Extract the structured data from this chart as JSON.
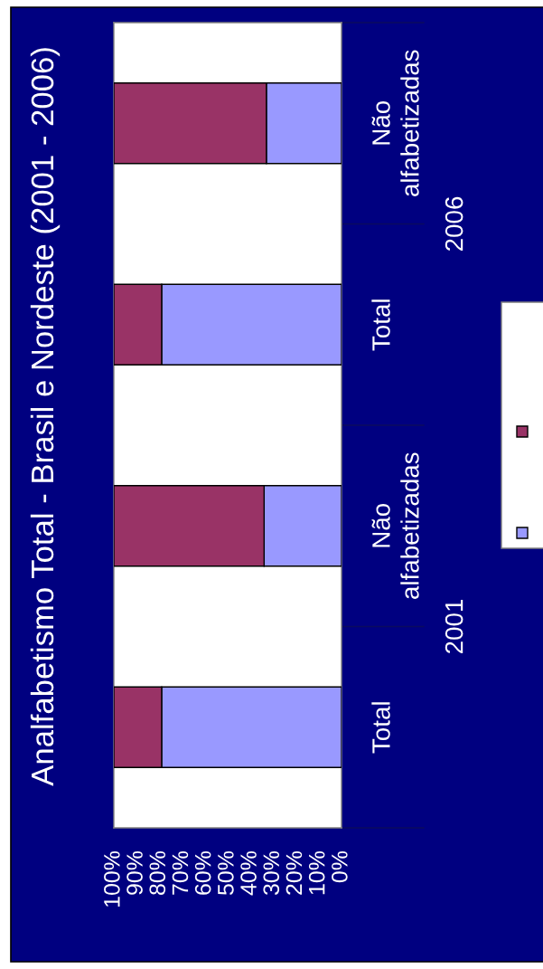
{
  "chart_data": {
    "type": "bar",
    "orientation": "horizontal",
    "stacked": true,
    "title": "Analfabetismo Total - Brasil e Nordeste (2001 - 2006)",
    "categories": [
      "Não\nalfabetizadas",
      "Total",
      "Não\nalfabetizadas",
      "Total"
    ],
    "series": [
      {
        "color": "#9999ff",
        "values": [
          33,
          79,
          34,
          79
        ]
      },
      {
        "color": "#993366",
        "values": [
          67,
          21,
          66,
          21
        ]
      }
    ],
    "xlim": [
      100,
      0
    ],
    "xticks": [
      {
        "value": 100,
        "label": "100%"
      },
      {
        "value": 90,
        "label": "90%"
      },
      {
        "value": 80,
        "label": "80%"
      },
      {
        "value": 70,
        "label": "70%"
      },
      {
        "value": 60,
        "label": "60%"
      },
      {
        "value": 50,
        "label": "50%"
      },
      {
        "value": 40,
        "label": "40%"
      },
      {
        "value": 30,
        "label": "30%"
      },
      {
        "value": 20,
        "label": "20%"
      },
      {
        "value": 10,
        "label": "10%"
      },
      {
        "value": 0,
        "label": "0%"
      }
    ],
    "annotations": [
      "2006",
      "2001"
    ]
  }
}
